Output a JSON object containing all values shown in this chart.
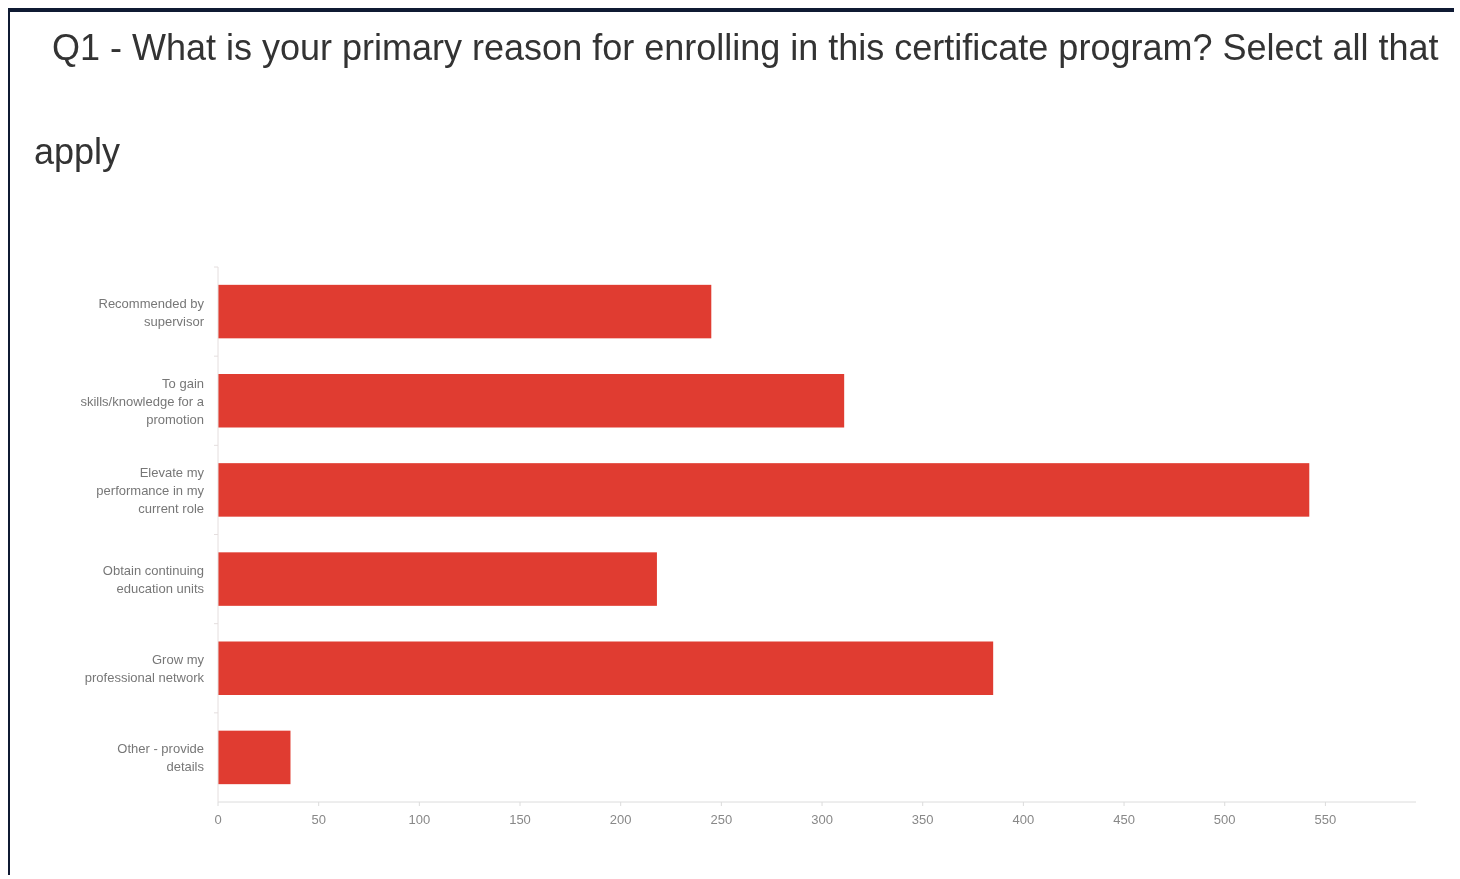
{
  "chart_data": {
    "type": "bar",
    "orientation": "horizontal",
    "title": "Q1 - What is your primary reason for enrolling in this certificate program? Select all that apply",
    "categories": [
      "Recommended by supervisor",
      "To gain skills/knowledge for a promotion",
      "Elevate my performance in my current role",
      "Obtain continuing education units",
      "Grow my professional network",
      "Other - provide details"
    ],
    "values": [
      245,
      311,
      542,
      218,
      385,
      36
    ],
    "color": "#e03c31",
    "xlim": [
      0,
      595
    ],
    "xticks": [
      0,
      50,
      100,
      150,
      200,
      250,
      300,
      350,
      400,
      450,
      500,
      550
    ],
    "grid": false
  }
}
